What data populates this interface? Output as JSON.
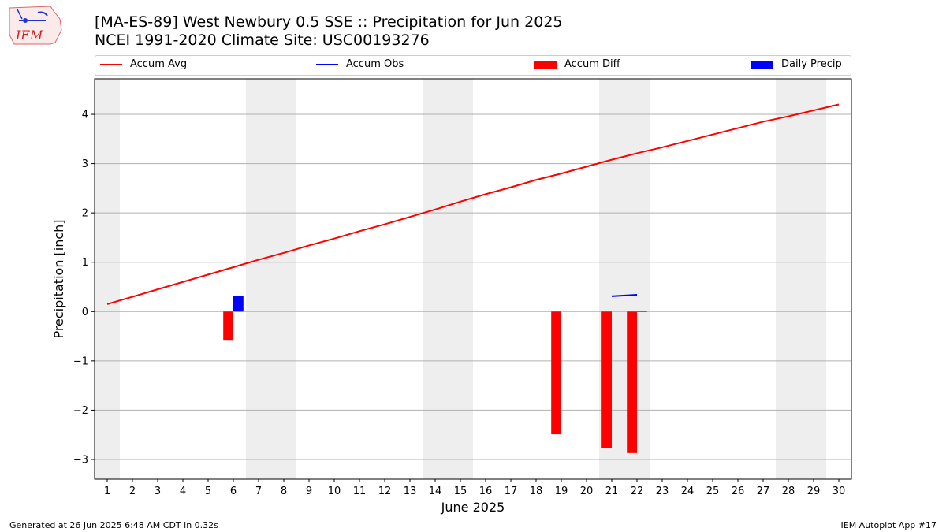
{
  "header": {
    "title_line1": "[MA-ES-89] West Newbury 0.5 SSE :: Precipitation for Jun 2025",
    "title_line2": "NCEI 1991-2020 Climate Site: USC00193276",
    "logo_text": "IEM"
  },
  "footer": {
    "left": "Generated at 26 Jun 2025 6:48 AM CDT in 0.32s",
    "right": "IEM Autoplot App #17"
  },
  "colors": {
    "accum_avg": "#ff0000",
    "accum_obs": "#0000ff",
    "accum_diff": "#ff0000",
    "daily_precip": "#0000ff",
    "weekend_shade": "#eeeeee",
    "grid": "#b0b0b0"
  },
  "chart_data": {
    "type": "bar",
    "title": "[MA-ES-89] West Newbury 0.5 SSE :: Precipitation for Jun 2025",
    "subtitle": "NCEI 1991-2020 Climate Site: USC00193276",
    "xlabel": "June 2025",
    "ylabel": "Precipitation [inch]",
    "xlim": [
      0.5,
      30.5
    ],
    "ylim": [
      -3.4,
      4.72
    ],
    "grid": "horizontal",
    "legend_placement": "top",
    "x_ticks": [
      1,
      2,
      3,
      4,
      5,
      6,
      7,
      8,
      9,
      10,
      11,
      12,
      13,
      14,
      15,
      16,
      17,
      18,
      19,
      20,
      21,
      22,
      23,
      24,
      25,
      26,
      27,
      28,
      29,
      30
    ],
    "y_ticks": [
      -3,
      -2,
      -1,
      0,
      1,
      2,
      3,
      4
    ],
    "y_tick_labels": [
      "−3",
      "−2",
      "−1",
      "0",
      "1",
      "2",
      "3",
      "4"
    ],
    "weekend_shading": [
      [
        0.5,
        1.5
      ],
      [
        6.5,
        8.5
      ],
      [
        13.5,
        15.5
      ],
      [
        20.5,
        22.5
      ],
      [
        27.5,
        29.5
      ]
    ],
    "series": [
      {
        "name": "Accum Avg",
        "kind": "line",
        "x": [
          1,
          2,
          3,
          4,
          5,
          6,
          7,
          8,
          9,
          10,
          11,
          12,
          13,
          14,
          15,
          16,
          17,
          18,
          19,
          20,
          21,
          22,
          23,
          24,
          25,
          26,
          27,
          28,
          29,
          30
        ],
        "values": [
          0.15,
          0.3,
          0.45,
          0.6,
          0.75,
          0.9,
          1.05,
          1.19,
          1.34,
          1.48,
          1.63,
          1.77,
          1.92,
          2.07,
          2.23,
          2.38,
          2.52,
          2.67,
          2.8,
          2.94,
          3.08,
          3.21,
          3.33,
          3.46,
          3.59,
          3.72,
          3.85,
          3.96,
          4.08,
          4.2
        ]
      },
      {
        "name": "Accum Obs",
        "kind": "line",
        "x": [
          21,
          22
        ],
        "values": [
          0.31,
          0.34
        ]
      },
      {
        "name": "Accum Diff",
        "kind": "bar",
        "x": [
          6,
          19,
          21,
          22
        ],
        "values": [
          -0.59,
          -2.49,
          -2.77,
          -2.87
        ]
      },
      {
        "name": "Daily Precip",
        "kind": "bar",
        "x": [
          6,
          22
        ],
        "values": [
          0.31,
          0.02
        ]
      }
    ]
  }
}
